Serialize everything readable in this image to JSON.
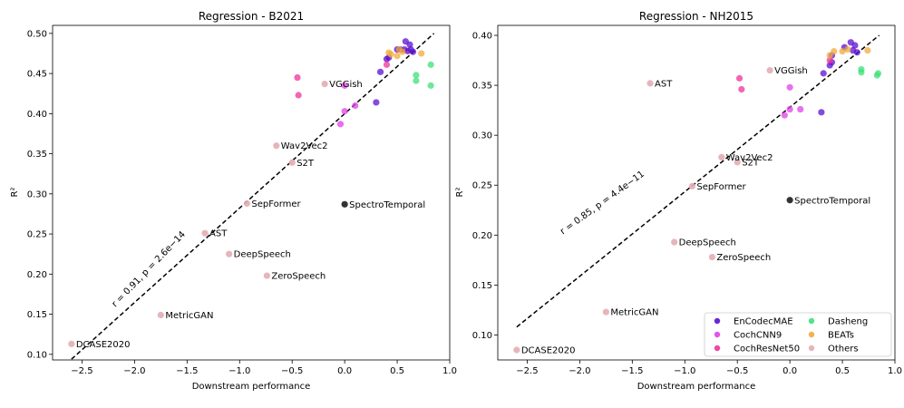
{
  "colors": {
    "EnCodecMAE": "#5b0fd0",
    "CochCNN9": "#e040e8",
    "CochResNet50": "#f0329a",
    "Dasheng": "#3ee07a",
    "BEATs": "#f2a93b",
    "Others": "#e3adb5",
    "SpectroTemporal": "#333333"
  },
  "legend_order": [
    "EnCodecMAE",
    "Dasheng",
    "CochCNN9",
    "BEATs",
    "CochResNet50",
    "Others"
  ],
  "chart_data": [
    {
      "type": "scatter",
      "title": "Regression - B2021",
      "xlabel": "Downstream performance",
      "ylabel": "R²",
      "xlim": [
        -2.78,
        1.0
      ],
      "ylim": [
        0.093,
        0.51
      ],
      "xticks": [
        -2.5,
        -2.0,
        -1.5,
        -1.0,
        -0.5,
        0.0,
        0.5,
        1.0
      ],
      "xtick_labels": [
        "−2.5",
        "−2.0",
        "−1.5",
        "−1.0",
        "−0.5",
        "0.0",
        "0.5",
        "1.0"
      ],
      "yticks": [
        0.1,
        0.15,
        0.2,
        0.25,
        0.3,
        0.35,
        0.4,
        0.45,
        0.5
      ],
      "ytick_labels": [
        "0.10",
        "0.15",
        "0.20",
        "0.25",
        "0.30",
        "0.35",
        "0.40",
        "0.45",
        "0.50"
      ],
      "fit_line": {
        "x": [
          -2.6,
          0.85
        ],
        "y": [
          0.094,
          0.5
        ]
      },
      "annotation": "r = 0.91,  p = 2.6e−14",
      "labeled_points": [
        {
          "label": "DCASE2020",
          "x": -2.6,
          "y": 0.113
        },
        {
          "label": "MetricGAN",
          "x": -1.75,
          "y": 0.149
        },
        {
          "label": "ZeroSpeech",
          "x": -0.74,
          "y": 0.198
        },
        {
          "label": "DeepSpeech",
          "x": -1.1,
          "y": 0.225
        },
        {
          "label": "AST",
          "x": -1.33,
          "y": 0.251
        },
        {
          "label": "SepFormer",
          "x": -0.93,
          "y": 0.288
        },
        {
          "label": "S2T",
          "x": -0.5,
          "y": 0.339
        },
        {
          "label": "Wav2Vec2",
          "x": -0.65,
          "y": 0.36
        },
        {
          "label": "VGGish",
          "x": -0.19,
          "y": 0.437
        }
      ],
      "spectro": {
        "label": "SpectroTemporal",
        "x": 0.0,
        "y": 0.287
      },
      "series": [
        {
          "name": "EnCodecMAE",
          "points": [
            [
              0.3,
              0.414
            ],
            [
              0.34,
              0.452
            ],
            [
              0.4,
              0.468
            ],
            [
              0.42,
              0.47
            ],
            [
              0.5,
              0.48
            ],
            [
              0.53,
              0.48
            ],
            [
              0.57,
              0.48
            ],
            [
              0.58,
              0.49
            ],
            [
              0.6,
              0.478
            ],
            [
              0.62,
              0.486
            ],
            [
              0.63,
              0.48
            ],
            [
              0.65,
              0.477
            ]
          ]
        },
        {
          "name": "CochCNN9",
          "points": [
            [
              -0.04,
              0.387
            ],
            [
              0.0,
              0.403
            ],
            [
              0.0,
              0.435
            ],
            [
              0.1,
              0.41
            ]
          ]
        },
        {
          "name": "CochResNet50",
          "points": [
            [
              -0.45,
              0.445
            ],
            [
              -0.44,
              0.423
            ],
            [
              0.4,
              0.461
            ]
          ]
        },
        {
          "name": "Dasheng",
          "points": [
            [
              0.68,
              0.448
            ],
            [
              0.68,
              0.441
            ],
            [
              0.82,
              0.461
            ],
            [
              0.82,
              0.435
            ]
          ]
        },
        {
          "name": "BEATs",
          "points": [
            [
              0.42,
              0.476
            ],
            [
              0.44,
              0.474
            ],
            [
              0.5,
              0.472
            ],
            [
              0.52,
              0.48
            ],
            [
              0.55,
              0.477
            ],
            [
              0.73,
              0.475
            ]
          ]
        }
      ]
    },
    {
      "type": "scatter",
      "title": "Regression - NH2015",
      "xlabel": "Downstream performance",
      "ylabel": "R²",
      "xlim": [
        -2.78,
        1.0
      ],
      "ylim": [
        0.075,
        0.41
      ],
      "xticks": [
        -2.5,
        -2.0,
        -1.5,
        -1.0,
        -0.5,
        0.0,
        0.5,
        1.0
      ],
      "xtick_labels": [
        "−2.5",
        "−2.0",
        "−1.5",
        "−1.0",
        "−0.5",
        "0.0",
        "0.5",
        "1.0"
      ],
      "yticks": [
        0.1,
        0.15,
        0.2,
        0.25,
        0.3,
        0.35,
        0.4
      ],
      "ytick_labels": [
        "0.10",
        "0.15",
        "0.20",
        "0.25",
        "0.30",
        "0.35",
        "0.40"
      ],
      "fit_line": {
        "x": [
          -2.6,
          0.85
        ],
        "y": [
          0.108,
          0.4
        ]
      },
      "annotation": "r = 0.85,  p = 4.4e−11",
      "legend_position": "lower right",
      "labeled_points": [
        {
          "label": "DCASE2020",
          "x": -2.6,
          "y": 0.085
        },
        {
          "label": "MetricGAN",
          "x": -1.75,
          "y": 0.123
        },
        {
          "label": "ZeroSpeech",
          "x": -0.74,
          "y": 0.178
        },
        {
          "label": "DeepSpeech",
          "x": -1.1,
          "y": 0.193
        },
        {
          "label": "SepFormer",
          "x": -0.93,
          "y": 0.249
        },
        {
          "label": "S2T",
          "x": -0.5,
          "y": 0.273
        },
        {
          "label": "Wav2Vec2",
          "x": -0.65,
          "y": 0.278
        },
        {
          "label": "AST",
          "x": -1.33,
          "y": 0.352
        },
        {
          "label": "VGGish",
          "x": -0.19,
          "y": 0.365
        }
      ],
      "spectro": {
        "label": "SpectroTemporal",
        "x": 0.0,
        "y": 0.235
      },
      "series": [
        {
          "name": "EnCodecMAE",
          "points": [
            [
              0.3,
              0.323
            ],
            [
              0.32,
              0.362
            ],
            [
              0.38,
              0.37
            ],
            [
              0.4,
              0.373
            ],
            [
              0.4,
              0.38
            ],
            [
              0.52,
              0.388
            ],
            [
              0.58,
              0.393
            ],
            [
              0.6,
              0.385
            ],
            [
              0.62,
              0.39
            ],
            [
              0.64,
              0.383
            ]
          ]
        },
        {
          "name": "CochCNN9",
          "points": [
            [
              -0.05,
              0.32
            ],
            [
              0.0,
              0.326
            ],
            [
              0.0,
              0.348
            ],
            [
              0.1,
              0.326
            ]
          ]
        },
        {
          "name": "CochResNet50",
          "points": [
            [
              -0.48,
              0.357
            ],
            [
              -0.46,
              0.346
            ],
            [
              0.38,
              0.375
            ]
          ]
        },
        {
          "name": "Dasheng",
          "points": [
            [
              0.68,
              0.363
            ],
            [
              0.68,
              0.366
            ],
            [
              0.83,
              0.36
            ],
            [
              0.84,
              0.362
            ]
          ]
        },
        {
          "name": "BEATs",
          "points": [
            [
              0.38,
              0.38
            ],
            [
              0.42,
              0.384
            ],
            [
              0.5,
              0.384
            ],
            [
              0.55,
              0.386
            ],
            [
              0.74,
              0.385
            ]
          ]
        }
      ]
    }
  ]
}
